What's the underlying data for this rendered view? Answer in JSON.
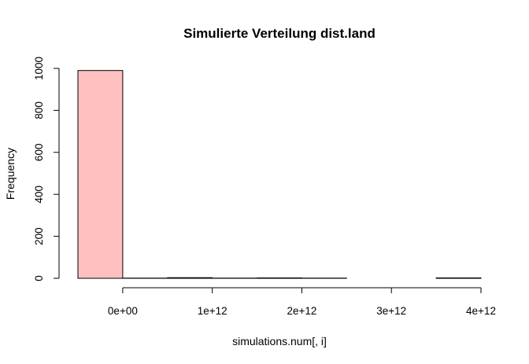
{
  "chart_data": {
    "type": "bar",
    "title": "Simulierte Verteilung dist.land",
    "xlabel": "simulations.num[, i]",
    "ylabel": "Frequency",
    "bin_width": 500000000000,
    "bins": [
      {
        "start": -500000000000,
        "end": 0,
        "count": 990
      },
      {
        "start": 0,
        "end": 500000000000,
        "count": 1
      },
      {
        "start": 500000000000,
        "end": 1000000000000,
        "count": 3
      },
      {
        "start": 1000000000000,
        "end": 1500000000000,
        "count": 1
      },
      {
        "start": 1500000000000,
        "end": 2000000000000,
        "count": 2
      },
      {
        "start": 2000000000000,
        "end": 2500000000000,
        "count": 1
      },
      {
        "start": 2500000000000,
        "end": 3000000000000,
        "count": 0
      },
      {
        "start": 3000000000000,
        "end": 3500000000000,
        "count": 0
      },
      {
        "start": 3500000000000,
        "end": 4000000000000,
        "count": 2
      }
    ],
    "xlim": [
      -500000000000,
      4000000000000
    ],
    "ylim": [
      0,
      1000
    ],
    "x_ticks": [
      {
        "value": 0,
        "label": "0e+00"
      },
      {
        "value": 1000000000000,
        "label": "1e+12"
      },
      {
        "value": 2000000000000,
        "label": "2e+12"
      },
      {
        "value": 3000000000000,
        "label": "3e+12"
      },
      {
        "value": 4000000000000,
        "label": "4e+12"
      }
    ],
    "y_ticks": [
      {
        "value": 0,
        "label": "0"
      },
      {
        "value": 200,
        "label": "200"
      },
      {
        "value": 400,
        "label": "400"
      },
      {
        "value": 600,
        "label": "600"
      },
      {
        "value": 800,
        "label": "800"
      },
      {
        "value": 1000,
        "label": "1000"
      }
    ],
    "highlight_color": "#ffc0c0",
    "bar_color": "#ffffff",
    "grid": false,
    "legend": "none"
  }
}
